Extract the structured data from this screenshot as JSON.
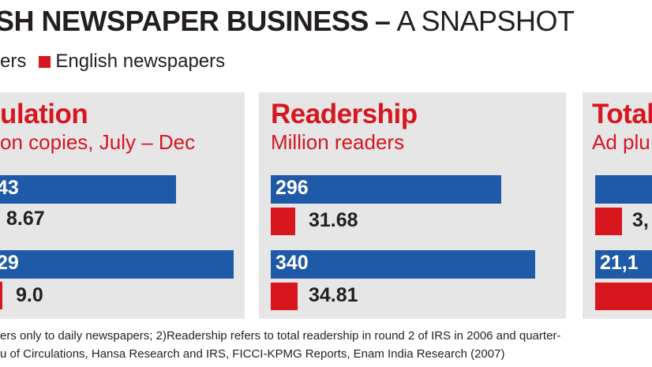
{
  "header": {
    "title": "SH NEWSPAPER BUSINESS",
    "dash": "–",
    "subtitle": "A SNAPSHOT"
  },
  "legend": {
    "other_label": "ers",
    "english_label": "English newspapers",
    "english_color": "#d7161e"
  },
  "colors": {
    "blue": "#1e5aa8",
    "red": "#d7161e",
    "panel_bg": "#e6e6e7"
  },
  "panels": {
    "circulation": {
      "title": "ulation",
      "subtitle": "on copies, July – Dec",
      "blue_labels": [
        "43",
        "29"
      ],
      "red_labels": [
        "8.67",
        "9.0"
      ]
    },
    "readership": {
      "title": "Readership",
      "subtitle": "Million readers",
      "blue_labels": [
        "296",
        "340"
      ],
      "red_labels": [
        "31.68",
        "34.81"
      ]
    },
    "total": {
      "title": "Total",
      "subtitle": "Ad plu",
      "blue_labels": [
        "",
        "21,1"
      ],
      "red_labels": [
        "3,",
        ""
      ]
    }
  },
  "footnotes": [
    "ers only to daily newspapers; 2)Readership refers to total readership in round 2 of IRS in 2006 and quarter-",
    "u of Circulations, Hansa Research and IRS, FICCI-KPMG Reports, Enam India Research (2007)"
  ],
  "chart_data": [
    {
      "type": "bar",
      "title": "Readership",
      "subtitle": "Million readers",
      "series": [
        {
          "name": "",
          "color": "#1e5aa8",
          "values": [
            296,
            340
          ]
        },
        {
          "name": "English newspapers",
          "color": "#d7161e",
          "values": [
            31.68,
            34.81
          ]
        }
      ],
      "categories": [
        "",
        ""
      ],
      "xlim": [
        0,
        360
      ]
    }
  ]
}
